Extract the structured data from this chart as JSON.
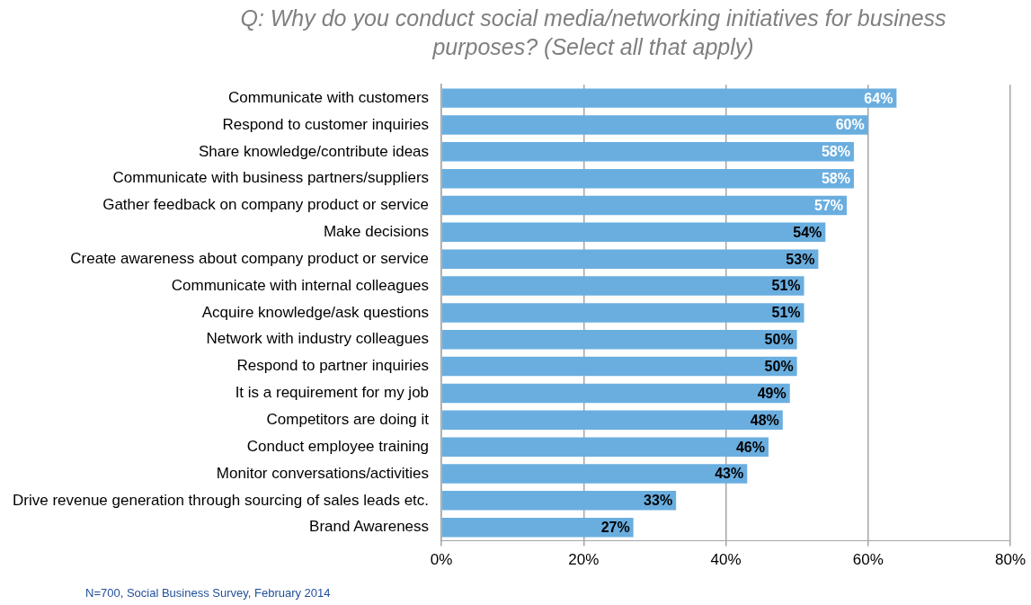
{
  "chart_data": {
    "type": "bar",
    "orientation": "horizontal",
    "title": "Q: Why do you conduct social media/networking initiatives for business purposes? (Select all that apply)",
    "categories": [
      "Communicate with customers",
      "Respond to customer inquiries",
      "Share knowledge/contribute ideas",
      "Communicate with business partners/suppliers",
      "Gather feedback on company product or service",
      "Make decisions",
      "Create awareness about company product or service",
      "Communicate with internal colleagues",
      "Acquire knowledge/ask questions",
      "Network with industry colleagues",
      "Respond to partner inquiries",
      "It is a requirement for my job",
      "Competitors are doing it",
      "Conduct employee training",
      "Monitor conversations/activities",
      "Drive revenue generation through sourcing of sales leads etc.",
      "Brand Awareness"
    ],
    "values": [
      64,
      60,
      58,
      58,
      57,
      54,
      53,
      51,
      51,
      50,
      50,
      49,
      48,
      46,
      43,
      33,
      27
    ],
    "value_labels": [
      "64%",
      "60%",
      "58%",
      "58%",
      "57%",
      "54%",
      "53%",
      "51%",
      "51%",
      "50%",
      "50%",
      "49%",
      "48%",
      "46%",
      "43%",
      "33%",
      "27%"
    ],
    "color": "#6aaee0",
    "xlim": [
      0,
      80
    ],
    "xticks": [
      {
        "value": 0,
        "label": "0%"
      },
      {
        "value": 20,
        "label": "20%"
      },
      {
        "value": 40,
        "label": "40%"
      },
      {
        "value": 60,
        "label": "60%"
      },
      {
        "value": 80,
        "label": "80%"
      }
    ],
    "grid": "x",
    "legend": false,
    "annotations": [
      "N=700, Social Business Survey, February 2014"
    ]
  }
}
